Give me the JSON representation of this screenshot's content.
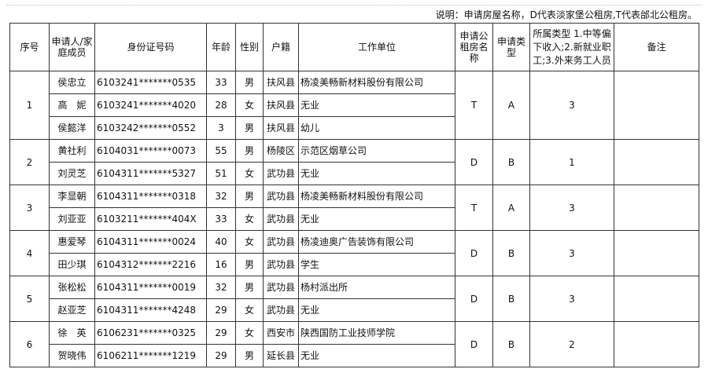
{
  "note": "说明：申请房屋名称，D代表淡家堡公租房,T代表邰北公租房。",
  "headers": [
    "序号",
    "申请人/家庭成员",
    "身份证号码",
    "年龄",
    "性别",
    "户籍",
    "工作单位",
    "申请公租房名称",
    "申请类型",
    "所属类型 1.中等偏下收入;2.新就业职工;3.外来务工人员",
    "备注"
  ],
  "groups": [
    {
      "no": "1",
      "house": "T",
      "type": "A",
      "category": "3",
      "remark": "",
      "members": [
        {
          "name": "侯忠立",
          "id": "6103241*******0535",
          "age": "33",
          "sex": "男",
          "hukou": "扶风县",
          "work": "杨凌美畅新材料股份有限公司"
        },
        {
          "name": "高　妮",
          "id": "6103241*******4020",
          "age": "28",
          "sex": "女",
          "hukou": "扶风县",
          "work": "无业"
        },
        {
          "name": "侯懿洋",
          "id": "6103242*******0552",
          "age": "3",
          "sex": "男",
          "hukou": "扶风县",
          "work": "幼儿"
        }
      ]
    },
    {
      "no": "2",
      "house": "D",
      "type": "B",
      "category": "1",
      "remark": "",
      "members": [
        {
          "name": "黄社利",
          "id": "6104031*******0073",
          "age": "55",
          "sex": "男",
          "hukou": "杨陵区",
          "work": "示范区烟草公司"
        },
        {
          "name": "刘灵芝",
          "id": "6104311*******5327",
          "age": "51",
          "sex": "女",
          "hukou": "武功县",
          "work": "无业"
        }
      ]
    },
    {
      "no": "3",
      "house": "T",
      "type": "A",
      "category": "3",
      "remark": "",
      "members": [
        {
          "name": "李显朝",
          "id": "6104311*******0318",
          "age": "32",
          "sex": "男",
          "hukou": "武功县",
          "work": "杨凌美畅新材料股份有限公司"
        },
        {
          "name": "刘亚亚",
          "id": "6103211*******404X",
          "age": "33",
          "sex": "女",
          "hukou": "武功县",
          "work": "无业"
        }
      ]
    },
    {
      "no": "4",
      "house": "D",
      "type": "B",
      "category": "3",
      "remark": "",
      "members": [
        {
          "name": "惠爱琴",
          "id": "6104311*******0024",
          "age": "40",
          "sex": "女",
          "hukou": "武功县",
          "work": "杨凌迪奥广告装饰有限公司"
        },
        {
          "name": "田少琪",
          "id": "6104312*******2216",
          "age": "16",
          "sex": "男",
          "hukou": "武功县",
          "work": "学生"
        }
      ]
    },
    {
      "no": "5",
      "house": "D",
      "type": "B",
      "category": "3",
      "remark": "",
      "members": [
        {
          "name": "张松松",
          "id": "6104311*******0019",
          "age": "32",
          "sex": "男",
          "hukou": "武功县",
          "work": "杨村派出所"
        },
        {
          "name": "赵亚芝",
          "id": "6104311*******4248",
          "age": "29",
          "sex": "女",
          "hukou": "武功县",
          "work": "无业"
        }
      ]
    },
    {
      "no": "6",
      "house": "D",
      "type": "B",
      "category": "2",
      "remark": "",
      "members": [
        {
          "name": "徐　英",
          "id": "6106231*******0325",
          "age": "29",
          "sex": "女",
          "hukou": "西安市",
          "work": "陕西国防工业技师学院"
        },
        {
          "name": "贺晓伟",
          "id": "6106211*******1219",
          "age": "29",
          "sex": "男",
          "hukou": "延长县",
          "work": "无业"
        }
      ]
    }
  ]
}
